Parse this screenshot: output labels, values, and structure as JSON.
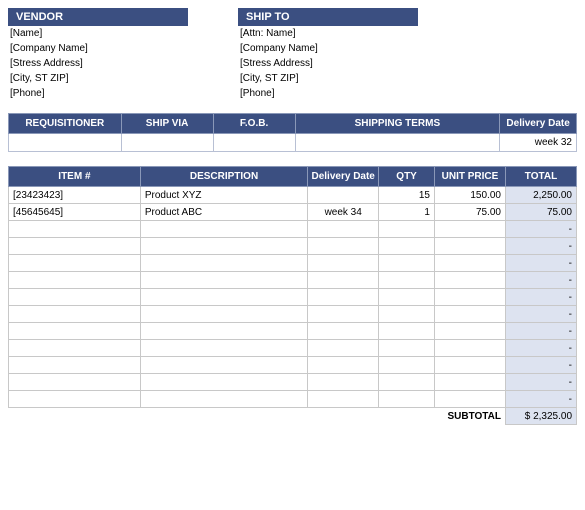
{
  "colors": {
    "header_bg": "#3b4f81",
    "header_fg": "#ffffff",
    "total_col_bg": "#dde3f0",
    "grid_border": "#c8c8c8",
    "header_border": "#8a98b8"
  },
  "vendor": {
    "title": "VENDOR",
    "fields": [
      "[Name]",
      "[Company Name]",
      "[Stress Address]",
      "[City, ST  ZIP]",
      "[Phone]"
    ]
  },
  "shipto": {
    "title": "SHIP TO",
    "fields": [
      "[Attn: Name]",
      "[Company Name]",
      "[Stress Address]",
      "[City, ST  ZIP]",
      "[Phone]"
    ]
  },
  "req_headers": [
    "REQUISITIONER",
    "SHIP VIA",
    "F.O.B.",
    "SHIPPING TERMS",
    "Delivery Date"
  ],
  "req_row": {
    "requisitioner": "",
    "ship_via": "",
    "fob": "",
    "shipping_terms": "",
    "delivery_date": "week 32"
  },
  "item_headers": {
    "item": "ITEM #",
    "desc": "DESCRIPTION",
    "del": "Delivery Date",
    "qty": "QTY",
    "price": "UNIT PRICE",
    "total": "TOTAL"
  },
  "items": [
    {
      "item": "[23423423]",
      "desc": "Product XYZ",
      "del": "",
      "qty": "15",
      "price": "150.00",
      "total": "2,250.00"
    },
    {
      "item": "[45645645]",
      "desc": "Product ABC",
      "del": "week 34",
      "qty": "1",
      "price": "75.00",
      "total": "75.00"
    },
    {
      "item": "",
      "desc": "",
      "del": "",
      "qty": "",
      "price": "",
      "total": "-"
    },
    {
      "item": "",
      "desc": "",
      "del": "",
      "qty": "",
      "price": "",
      "total": "-"
    },
    {
      "item": "",
      "desc": "",
      "del": "",
      "qty": "",
      "price": "",
      "total": "-"
    },
    {
      "item": "",
      "desc": "",
      "del": "",
      "qty": "",
      "price": "",
      "total": "-"
    },
    {
      "item": "",
      "desc": "",
      "del": "",
      "qty": "",
      "price": "",
      "total": "-"
    },
    {
      "item": "",
      "desc": "",
      "del": "",
      "qty": "",
      "price": "",
      "total": "-"
    },
    {
      "item": "",
      "desc": "",
      "del": "",
      "qty": "",
      "price": "",
      "total": "-"
    },
    {
      "item": "",
      "desc": "",
      "del": "",
      "qty": "",
      "price": "",
      "total": "-"
    },
    {
      "item": "",
      "desc": "",
      "del": "",
      "qty": "",
      "price": "",
      "total": "-"
    },
    {
      "item": "",
      "desc": "",
      "del": "",
      "qty": "",
      "price": "",
      "total": "-"
    },
    {
      "item": "",
      "desc": "",
      "del": "",
      "qty": "",
      "price": "",
      "total": "-"
    }
  ],
  "subtotal": {
    "label": "SUBTOTAL",
    "value": "$ 2,325.00"
  }
}
